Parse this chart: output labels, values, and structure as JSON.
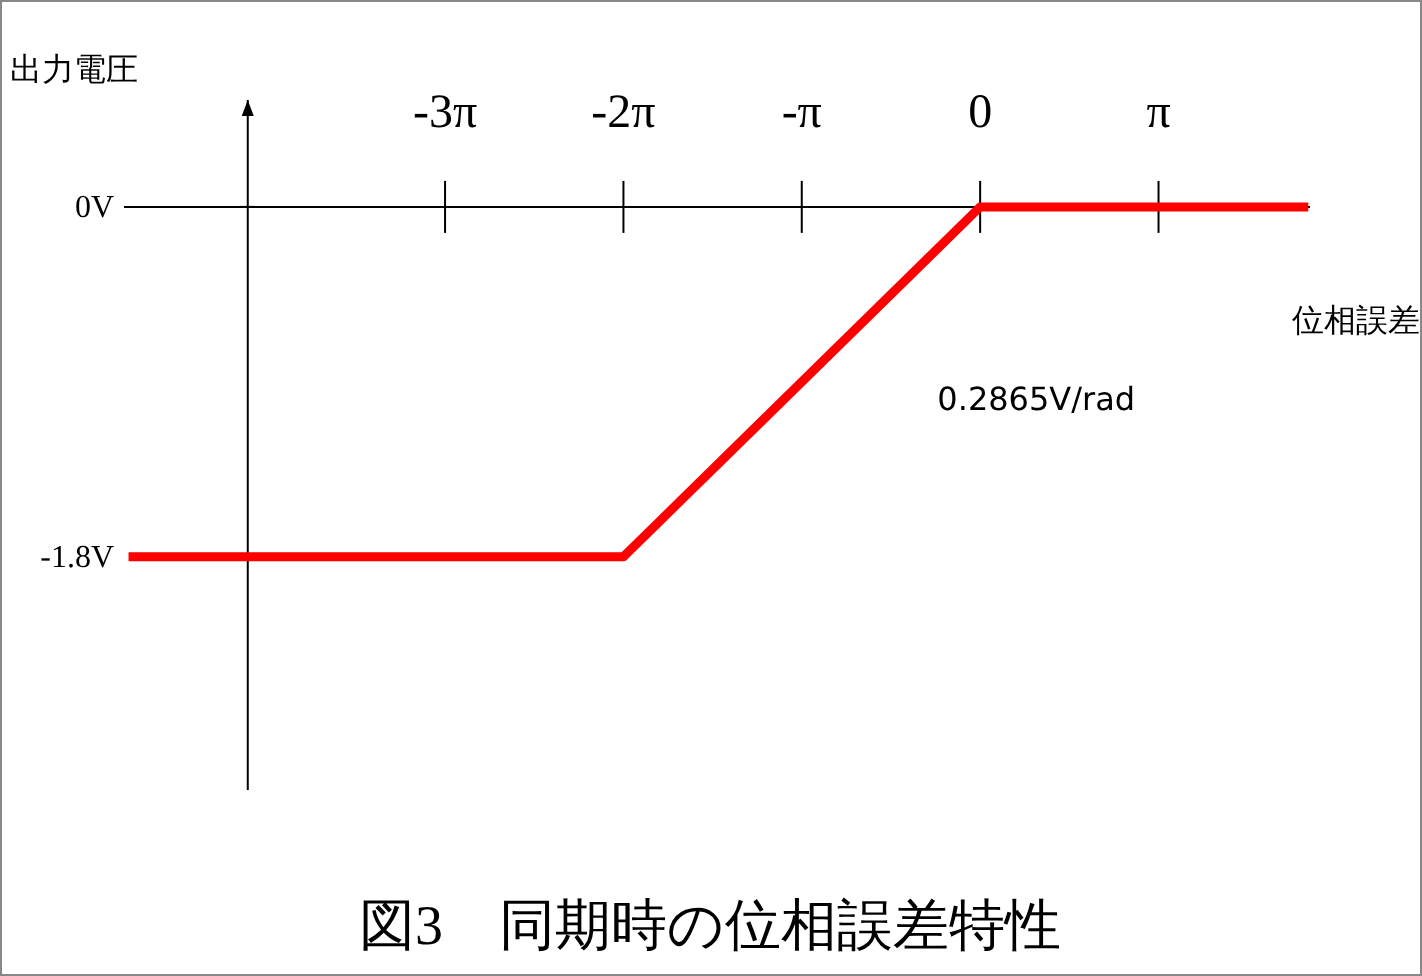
{
  "chart_data": {
    "type": "line",
    "title": "図3　同期時の位相誤差特性",
    "xlabel": "位相誤差",
    "ylabel": "出力電圧",
    "x": [
      -15.0,
      -6.283,
      0,
      5.78
    ],
    "series": [
      {
        "color": "#ff0000",
        "values": [
          -1.8,
          -1.8,
          0,
          0
        ]
      }
    ],
    "xlim": [
      -15.08,
      5.81
    ],
    "ylim": [
      -3.0,
      0.55
    ],
    "xticks": [
      {
        "value": -9.425,
        "label": "-3π"
      },
      {
        "value": -6.283,
        "label": "-2π"
      },
      {
        "value": -3.142,
        "label": "-π"
      },
      0,
      {
        "value": 3.142,
        "label": "π"
      }
    ],
    "yticks": [
      {
        "value": 0,
        "label": "0V"
      },
      {
        "value": -1.8,
        "label": "-1.8V"
      }
    ],
    "ref_lines": [
      {
        "axis": "x",
        "value": -12.9
      }
    ],
    "annotations": [
      "0.2865V/rad"
    ]
  }
}
